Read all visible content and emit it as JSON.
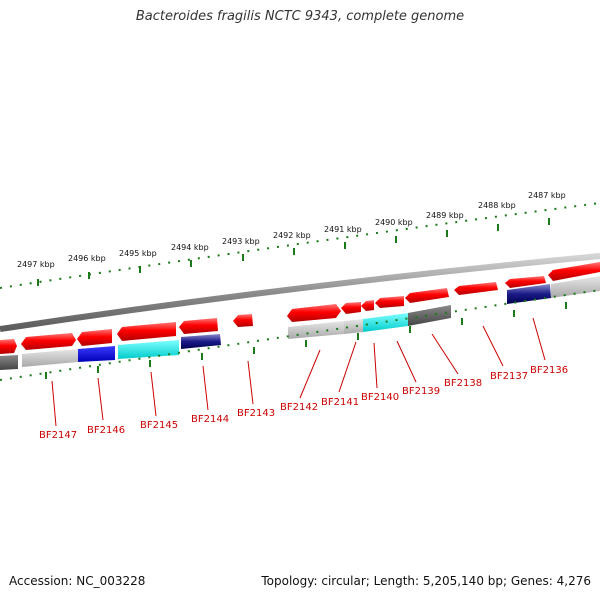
{
  "title": "Bacteroides fragilis NCTC 9343, complete genome",
  "footer": {
    "accession": "Accession: NC_003228",
    "summary": "Topology: circular; Length: 5,205,140 bp; Genes: 4,276"
  },
  "colors": {
    "forward_gene": "#e30000",
    "backbone": "#8a8a8a",
    "tick": "#1a7a1a",
    "label": "#cc0000"
  },
  "scale_labels": [
    "2497 kbp",
    "2496 kbp",
    "2495 kbp",
    "2494 kbp",
    "2493 kbp",
    "2492 kbp",
    "2491 kbp",
    "2490 kbp",
    "2489 kbp",
    "2488 kbp",
    "2487 kbp"
  ],
  "gene_labels": [
    "BF2147",
    "BF2146",
    "BF2145",
    "BF2144",
    "BF2143",
    "BF2142",
    "BF2141",
    "BF2140",
    "BF2139",
    "BF2138",
    "BF2137",
    "BF2136"
  ]
}
